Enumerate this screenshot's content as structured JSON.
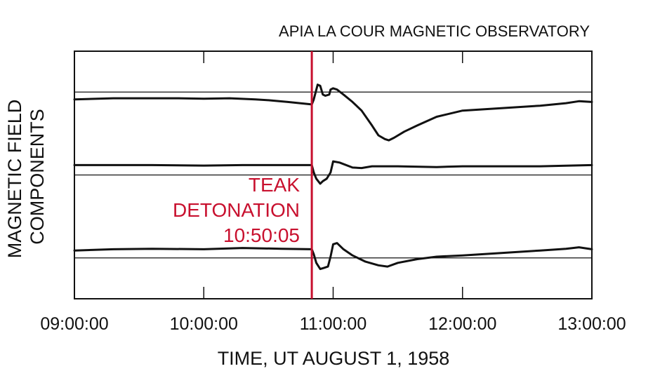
{
  "chart_data": {
    "type": "line",
    "title": "APIA LA COUR MAGNETIC OBSERVATORY",
    "xlabel": "TIME, UT AUGUST 1, 1958",
    "ylabel_lines": [
      "MAGNETIC FIELD",
      "COMPONENTS"
    ],
    "x_ticks": [
      {
        "hours": 9,
        "label": "09:00:00"
      },
      {
        "hours": 10,
        "label": "10:00:00"
      },
      {
        "hours": 11,
        "label": "11:00:00"
      },
      {
        "hours": 12,
        "label": "12:00:00"
      },
      {
        "hours": 13,
        "label": "13:00:00"
      }
    ],
    "xlim": [
      9,
      13
    ],
    "ylim": [
      0,
      100
    ],
    "grid": false,
    "event": {
      "hours": 10.835,
      "label_lines": [
        "TEAK",
        "DETONATION",
        "10:50:05"
      ],
      "color": "#c8102e"
    },
    "series": [
      {
        "name": "component-1",
        "baseline": 83.5,
        "x": [
          9.0,
          9.3,
          9.6,
          9.8,
          10.0,
          10.2,
          10.4,
          10.5,
          10.65,
          10.835,
          10.85,
          10.88,
          10.9,
          10.92,
          10.94,
          10.97,
          10.98,
          11.0,
          11.03,
          11.08,
          11.15,
          11.22,
          11.3,
          11.35,
          11.4,
          11.43,
          11.47,
          11.55,
          11.65,
          11.8,
          12.0,
          12.3,
          12.6,
          12.8,
          12.9,
          13.0
        ],
        "y": [
          80.5,
          81.0,
          81.0,
          81.0,
          80.8,
          81.0,
          80.5,
          80.2,
          79.5,
          78.5,
          80.5,
          86.5,
          86.0,
          82.5,
          82.0,
          82.5,
          84.5,
          85.0,
          84.5,
          82.5,
          79.5,
          76.0,
          70.0,
          66.0,
          64.5,
          64.0,
          65.0,
          67.5,
          70.0,
          73.5,
          76.0,
          77.0,
          78.0,
          79.0,
          79.8,
          79.5
        ]
      },
      {
        "name": "component-2",
        "baseline": 50.0,
        "x": [
          9.0,
          9.3,
          9.6,
          10.0,
          10.3,
          10.6,
          10.835,
          10.85,
          10.87,
          10.9,
          10.92,
          10.95,
          10.98,
          11.0,
          11.05,
          11.15,
          11.22,
          11.3,
          11.5,
          11.8,
          12.0,
          12.3,
          12.6,
          13.0
        ],
        "y": [
          54.0,
          54.0,
          54.0,
          53.8,
          54.0,
          54.0,
          54.0,
          51.0,
          48.5,
          46.5,
          47.5,
          48.5,
          51.0,
          55.5,
          55.0,
          53.0,
          52.8,
          53.5,
          53.5,
          53.2,
          53.5,
          53.5,
          53.5,
          54.0
        ]
      },
      {
        "name": "component-3",
        "baseline": 16.5,
        "x": [
          9.0,
          9.3,
          9.6,
          10.0,
          10.3,
          10.6,
          10.835,
          10.85,
          10.87,
          10.9,
          10.93,
          10.96,
          10.98,
          11.0,
          11.03,
          11.08,
          11.15,
          11.25,
          11.35,
          11.42,
          11.5,
          11.65,
          11.8,
          12.0,
          12.3,
          12.6,
          12.8,
          12.9,
          13.0
        ],
        "y": [
          19.5,
          20.0,
          20.2,
          20.0,
          20.5,
          20.2,
          20.0,
          18.0,
          14.5,
          12.0,
          12.5,
          13.0,
          17.0,
          22.0,
          22.5,
          20.0,
          17.5,
          15.0,
          13.5,
          13.0,
          14.5,
          16.0,
          17.0,
          17.5,
          18.5,
          19.5,
          20.2,
          20.8,
          20.0
        ]
      }
    ]
  }
}
